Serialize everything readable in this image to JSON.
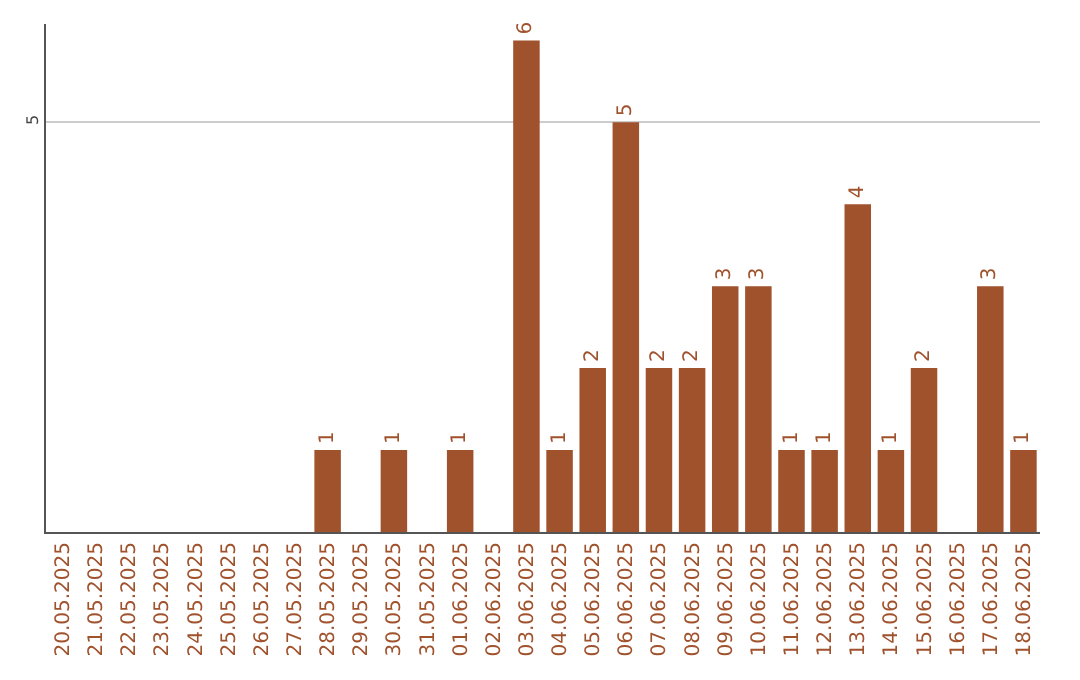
{
  "chart_data": {
    "type": "bar",
    "categories": [
      "20.05.2025",
      "21.05.2025",
      "22.05.2025",
      "23.05.2025",
      "24.05.2025",
      "25.05.2025",
      "26.05.2025",
      "27.05.2025",
      "28.05.2025",
      "29.05.2025",
      "30.05.2025",
      "31.05.2025",
      "01.06.2025",
      "02.06.2025",
      "03.06.2025",
      "04.06.2025",
      "05.06.2025",
      "06.06.2025",
      "07.06.2025",
      "08.06.2025",
      "09.06.2025",
      "10.06.2025",
      "11.06.2025",
      "12.06.2025",
      "13.06.2025",
      "14.06.2025",
      "15.06.2025",
      "16.06.2025",
      "17.06.2025",
      "18.06.2025"
    ],
    "values": [
      0,
      0,
      0,
      0,
      0,
      0,
      0,
      0,
      1,
      0,
      1,
      0,
      1,
      0,
      6,
      1,
      2,
      5,
      2,
      2,
      3,
      3,
      1,
      1,
      4,
      1,
      2,
      0,
      3,
      1
    ],
    "value_labels": [
      null,
      null,
      null,
      null,
      null,
      null,
      null,
      null,
      "1",
      null,
      "1",
      null,
      "1",
      null,
      "6",
      "1",
      "2",
      "5",
      "2",
      "2",
      "3",
      "3",
      "1",
      "1",
      "4",
      "1",
      "2",
      null,
      "3",
      "1"
    ],
    "color": "#a0522d",
    "ylim": [
      0,
      6.2
    ],
    "yticks": [
      5
    ],
    "grid": "y"
  }
}
